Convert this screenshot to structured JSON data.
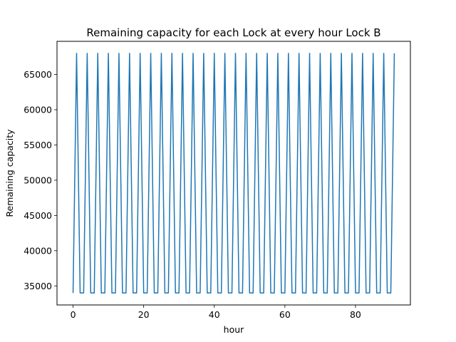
{
  "chart_data": {
    "type": "line",
    "title": "Remaining capacity for each Lock at every hour Lock B",
    "xlabel": "hour",
    "ylabel": "Remaining capacity",
    "xlim": [
      -4.55,
      95.55
    ],
    "ylim": [
      32300,
      69700
    ],
    "xticks": [
      0,
      20,
      40,
      60,
      80
    ],
    "yticks": [
      35000,
      40000,
      45000,
      50000,
      55000,
      60000,
      65000
    ],
    "grid": false,
    "legend": "none",
    "series": [
      {
        "color": "#1f77b4",
        "x": [
          0,
          1,
          2,
          3,
          4,
          5,
          6,
          7,
          8,
          9,
          10,
          11,
          12,
          13,
          14,
          15,
          16,
          17,
          18,
          19,
          20,
          21,
          22,
          23,
          24,
          25,
          26,
          27,
          28,
          29,
          30,
          31,
          32,
          33,
          34,
          35,
          36,
          37,
          38,
          39,
          40,
          41,
          42,
          43,
          44,
          45,
          46,
          47,
          48,
          49,
          50,
          51,
          52,
          53,
          54,
          55,
          56,
          57,
          58,
          59,
          60,
          61,
          62,
          63,
          64,
          65,
          66,
          67,
          68,
          69,
          70,
          71,
          72,
          73,
          74,
          75,
          76,
          77,
          78,
          79,
          80,
          81,
          82,
          83,
          84,
          85,
          86,
          87,
          88,
          89,
          90,
          91
        ],
        "y": [
          34000,
          68000,
          34000,
          34000,
          68000,
          34000,
          34000,
          68000,
          34000,
          34000,
          68000,
          34000,
          34000,
          68000,
          34000,
          34000,
          68000,
          34000,
          34000,
          68000,
          34000,
          34000,
          68000,
          34000,
          34000,
          68000,
          34000,
          34000,
          68000,
          34000,
          34000,
          68000,
          34000,
          34000,
          68000,
          34000,
          34000,
          68000,
          34000,
          34000,
          68000,
          34000,
          34000,
          68000,
          34000,
          34000,
          68000,
          34000,
          34000,
          68000,
          34000,
          34000,
          68000,
          34000,
          34000,
          68000,
          34000,
          34000,
          68000,
          34000,
          34000,
          68000,
          34000,
          34000,
          68000,
          34000,
          34000,
          68000,
          34000,
          34000,
          68000,
          34000,
          34000,
          68000,
          34000,
          34000,
          68000,
          34000,
          34000,
          68000,
          34000,
          34000,
          68000,
          34000,
          34000,
          68000,
          34000,
          34000,
          68000,
          34000,
          34000,
          68000
        ]
      }
    ]
  }
}
